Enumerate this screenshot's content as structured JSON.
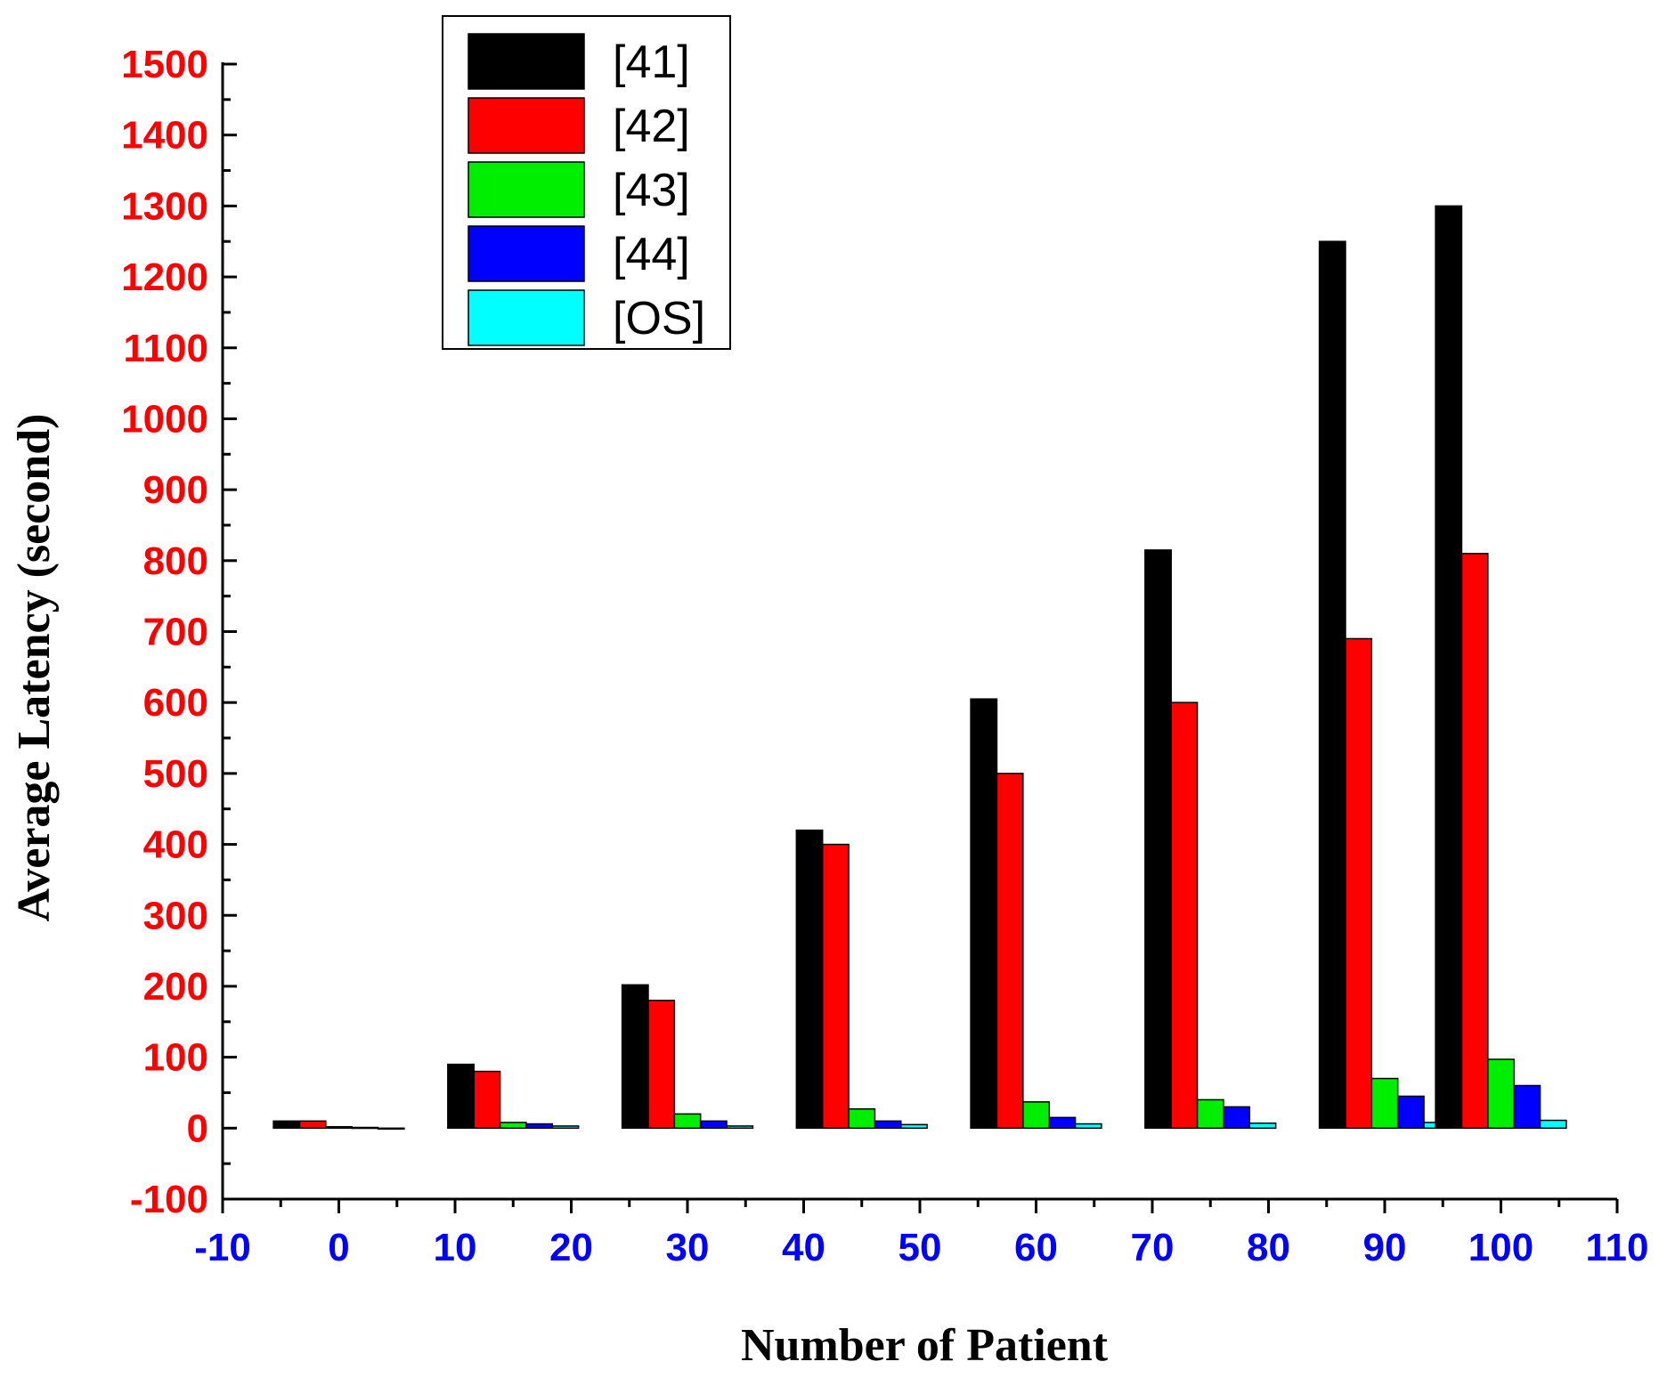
{
  "chart_data": {
    "type": "bar",
    "xlabel": "Number of Patient",
    "ylabel": "Average Latency (second)",
    "xlim": [
      -10,
      110
    ],
    "ylim": [
      -100,
      1500
    ],
    "xticks": [
      "-10",
      "0",
      "10",
      "20",
      "30",
      "40",
      "50",
      "60",
      "70",
      "80",
      "90",
      "100",
      "110"
    ],
    "yticks": [
      "-100",
      "0",
      "100",
      "200",
      "300",
      "400",
      "500",
      "600",
      "700",
      "800",
      "900",
      "1000",
      "1100",
      "1200",
      "1300",
      "1400",
      "1500"
    ],
    "grid": false,
    "legend_position": "top-left",
    "categories": [
      0,
      15,
      30,
      45,
      60,
      75,
      90,
      100
    ],
    "series": [
      {
        "name": "[41]",
        "color": "#000000",
        "values": [
          10,
          90,
          202,
          420,
          605,
          815,
          1250,
          1300
        ]
      },
      {
        "name": "[42]",
        "color": "#ff0000",
        "values": [
          10,
          80,
          180,
          400,
          500,
          600,
          690,
          810
        ]
      },
      {
        "name": "[43]",
        "color": "#00ee00",
        "values": [
          2,
          8,
          20,
          27,
          37,
          40,
          70,
          97
        ]
      },
      {
        "name": "[44]",
        "color": "#0000ff",
        "values": [
          1,
          6,
          10,
          10,
          15,
          30,
          45,
          60
        ]
      },
      {
        "name": "[OS]",
        "color": "#00ffff",
        "values": [
          0,
          3,
          3,
          5,
          6,
          7,
          8,
          11
        ]
      }
    ],
    "colors": {
      "ytick": "#ff0000",
      "xtick": "#0000ff",
      "axis": "#000000"
    }
  }
}
